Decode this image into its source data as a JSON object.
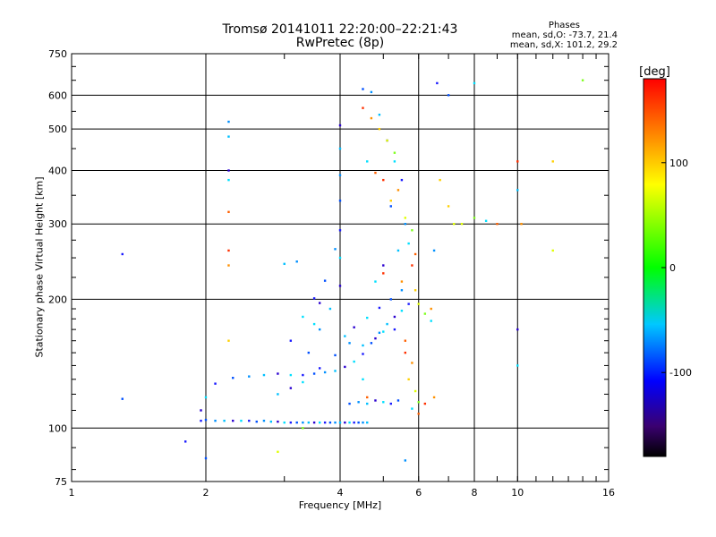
{
  "chart_data": {
    "type": "scatter",
    "title": "Tromsø 20141011 22:20:00–22:21:43",
    "subtitle": "RwPretec (8p)",
    "xlabel": "Frequency [MHz]",
    "ylabel": "Stationary phase Virtual Height [km]",
    "x_scale": "log",
    "y_scale": "log",
    "xlim": [
      1,
      16
    ],
    "ylim": [
      75,
      750
    ],
    "x_ticks": [
      "1",
      "2",
      "4",
      "6",
      "8",
      "10",
      "16"
    ],
    "x_tick_values": [
      1,
      2,
      4,
      6,
      8,
      10,
      16
    ],
    "y_ticks": [
      "75",
      "100",
      "200",
      "300",
      "400",
      "500",
      "600",
      "750"
    ],
    "y_tick_values": [
      75,
      100,
      200,
      300,
      400,
      500,
      600,
      750
    ],
    "grid": true,
    "colorbar": {
      "label": "[deg]",
      "range": [
        -180,
        180
      ],
      "ticks": [
        "100",
        "0",
        "-100"
      ],
      "tick_values": [
        100,
        0,
        -100
      ]
    },
    "stats_heading": "Phases",
    "stats": [
      "mean, sd,O: -73.7, 21.4",
      "mean, sd,X: 101.2, 29.2"
    ],
    "series": [
      {
        "mode": "O",
        "points": [
          [
            1.95,
            104
          ],
          [
            2.0,
            104.5
          ],
          [
            2.1,
            104
          ],
          [
            2.2,
            104
          ],
          [
            2.3,
            104
          ],
          [
            2.4,
            104
          ],
          [
            2.5,
            104
          ],
          [
            2.6,
            103.5
          ],
          [
            2.7,
            104
          ],
          [
            2.8,
            103.5
          ],
          [
            2.9,
            103.5
          ],
          [
            3.0,
            103
          ],
          [
            3.1,
            103
          ],
          [
            3.2,
            103
          ],
          [
            3.3,
            103
          ],
          [
            3.4,
            103
          ],
          [
            3.5,
            103
          ],
          [
            3.6,
            103
          ],
          [
            3.7,
            103
          ],
          [
            3.8,
            103
          ],
          [
            3.9,
            103
          ],
          [
            4.0,
            103
          ],
          [
            4.1,
            103
          ],
          [
            4.2,
            103
          ],
          [
            4.3,
            103
          ],
          [
            4.4,
            103
          ],
          [
            4.5,
            103
          ],
          [
            4.6,
            103
          ],
          [
            1.95,
            110
          ],
          [
            2.0,
            118
          ],
          [
            2.1,
            127
          ],
          [
            2.3,
            131
          ],
          [
            2.5,
            132
          ],
          [
            2.7,
            133
          ],
          [
            2.9,
            134
          ],
          [
            3.1,
            133
          ],
          [
            3.3,
            133
          ],
          [
            3.5,
            134
          ],
          [
            3.7,
            135
          ],
          [
            3.9,
            136
          ],
          [
            4.1,
            139
          ],
          [
            4.3,
            143
          ],
          [
            4.5,
            149
          ],
          [
            4.7,
            158
          ],
          [
            4.9,
            167
          ],
          [
            5.1,
            175
          ],
          [
            5.3,
            182
          ],
          [
            5.5,
            188
          ],
          [
            5.7,
            195
          ],
          [
            3.4,
            150
          ],
          [
            3.6,
            170
          ],
          [
            3.8,
            190
          ],
          [
            4.0,
            215
          ],
          [
            4.0,
            250
          ],
          [
            4.0,
            290
          ],
          [
            4.0,
            340
          ],
          [
            4.0,
            390
          ],
          [
            4.0,
            450
          ],
          [
            4.0,
            510
          ],
          [
            3.3,
            182
          ],
          [
            3.5,
            201
          ],
          [
            3.7,
            221
          ],
          [
            3.9,
            262
          ],
          [
            4.1,
            164
          ],
          [
            4.3,
            172
          ],
          [
            4.6,
            181
          ],
          [
            4.9,
            191
          ],
          [
            5.2,
            200
          ],
          [
            5.5,
            210
          ],
          [
            2.9,
            120
          ],
          [
            3.1,
            124
          ],
          [
            3.3,
            128
          ],
          [
            3.6,
            138
          ],
          [
            3.9,
            148
          ],
          [
            4.2,
            158
          ],
          [
            4.5,
            156
          ],
          [
            4.8,
            162
          ],
          [
            5.0,
            168
          ],
          [
            5.3,
            170
          ],
          [
            4.2,
            114
          ],
          [
            4.4,
            115
          ],
          [
            4.6,
            114
          ],
          [
            4.8,
            116
          ],
          [
            5.0,
            115
          ],
          [
            5.2,
            114
          ],
          [
            5.4,
            116
          ],
          [
            2.25,
            520
          ],
          [
            2.25,
            480
          ],
          [
            2.25,
            400
          ],
          [
            2.25,
            380
          ],
          [
            1.3,
            255
          ],
          [
            1.3,
            117
          ],
          [
            3.2,
            245
          ],
          [
            3.0,
            242
          ],
          [
            3.6,
            196
          ],
          [
            3.5,
            175
          ],
          [
            3.1,
            160
          ],
          [
            4.5,
            620
          ],
          [
            4.7,
            610
          ],
          [
            4.9,
            540
          ],
          [
            5.1,
            470
          ],
          [
            5.3,
            420
          ],
          [
            5.5,
            380
          ],
          [
            5.2,
            330
          ],
          [
            5.6,
            300
          ],
          [
            5.4,
            260
          ],
          [
            5.0,
            240
          ],
          [
            4.8,
            220
          ],
          [
            6.6,
            640
          ],
          [
            7.0,
            600
          ],
          [
            6.5,
            260
          ],
          [
            10.0,
            360
          ],
          [
            10.0,
            170
          ],
          [
            10.0,
            140
          ],
          [
            1.8,
            93
          ],
          [
            2.0,
            85
          ],
          [
            5.6,
            84
          ]
        ]
      },
      {
        "mode": "X",
        "points": [
          [
            4.5,
            560
          ],
          [
            4.7,
            530
          ],
          [
            4.9,
            500
          ],
          [
            5.1,
            470
          ],
          [
            5.3,
            440
          ],
          [
            4.6,
            420
          ],
          [
            4.8,
            395
          ],
          [
            5.0,
            380
          ],
          [
            5.4,
            360
          ],
          [
            5.2,
            340
          ],
          [
            5.6,
            310
          ],
          [
            5.8,
            290
          ],
          [
            5.7,
            270
          ],
          [
            5.9,
            255
          ],
          [
            5.8,
            240
          ],
          [
            5.5,
            220
          ],
          [
            5.9,
            210
          ],
          [
            6.0,
            195
          ],
          [
            6.2,
            185
          ],
          [
            6.4,
            178
          ],
          [
            5.6,
            160
          ],
          [
            5.6,
            150
          ],
          [
            5.8,
            142
          ],
          [
            5.7,
            130
          ],
          [
            5.9,
            122
          ],
          [
            6.0,
            115
          ],
          [
            5.8,
            111
          ],
          [
            6.0,
            108
          ],
          [
            6.2,
            114
          ],
          [
            6.5,
            118
          ],
          [
            7.0,
            330
          ],
          [
            7.5,
            300
          ],
          [
            8.0,
            310
          ],
          [
            8.5,
            305
          ],
          [
            9.0,
            300
          ],
          [
            10.0,
            420
          ],
          [
            10.2,
            300
          ],
          [
            12.0,
            420
          ],
          [
            12.0,
            260
          ],
          [
            14.0,
            650
          ],
          [
            8.0,
            640
          ],
          [
            2.25,
            320
          ],
          [
            2.25,
            260
          ],
          [
            2.25,
            240
          ],
          [
            2.25,
            160
          ],
          [
            2.9,
            88
          ],
          [
            3.3,
            100
          ],
          [
            4.5,
            130
          ],
          [
            4.6,
            118
          ],
          [
            5.0,
            230
          ],
          [
            6.4,
            190
          ],
          [
            6.7,
            380
          ],
          [
            7.2,
            300
          ]
        ]
      }
    ]
  }
}
